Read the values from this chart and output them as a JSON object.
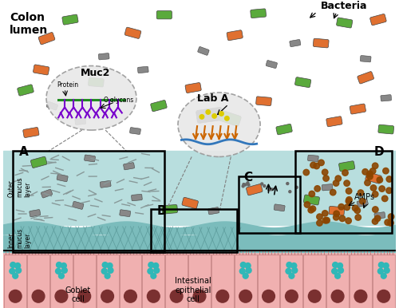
{
  "bg_color": "#ffffff",
  "colon_lumen_label": "Colon\nlumen",
  "bacteria_label": "Bacteria",
  "outer_mucus_label": "Outer\nmucus\nlayer",
  "inner_mucus_label": "Inner\nmucus\nlayer",
  "goblet_label": "Goblet\ncell",
  "intestinal_label": "Intestinal\nepithelial\ncell",
  "muc2_label": "Muc2",
  "protein_label": "Protein",
  "o_glycans_label": "O-glycans",
  "labA_label": "Lab A",
  "AMPs_label": "AMPs",
  "bacteria_green": "#5aaa3c",
  "bacteria_orange": "#e07030",
  "bacteria_gray": "#888888",
  "mucus_outer_color": "#b8dede",
  "mucus_inner_color": "#7bbcbc",
  "mucus_inner2_color": "#5a9999",
  "cell_body_color": "#f0b0b0",
  "cell_nucleus_color": "#7a3030",
  "cell_vesicle_color": "#30b8b8",
  "amp_dot_color": "#8b4500",
  "protein_color": "#228B22",
  "oglycan_color": "#7700cc",
  "labA_fiber_color": "#cc6600",
  "labA_blue_color": "#3377bb",
  "labA_gray_color": "#555555",
  "labA_dot_color": "#ddcc00",
  "hatch_color": "#5a9999",
  "glycan_dash_color": "#889999"
}
